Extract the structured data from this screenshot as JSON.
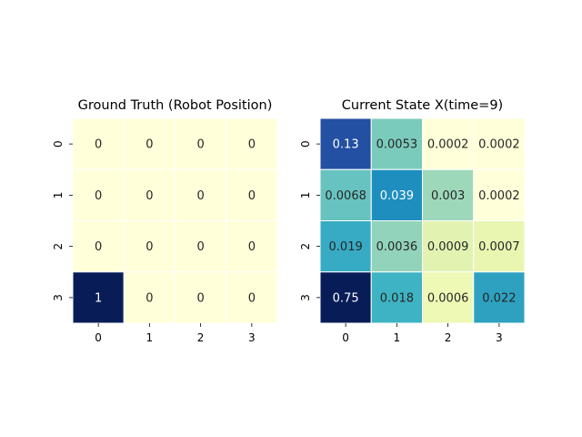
{
  "chart_data": [
    {
      "type": "heatmap",
      "title": "Ground Truth (Robot Position)",
      "xlabel": "",
      "ylabel": "",
      "x_tick_labels": [
        "0",
        "1",
        "2",
        "3"
      ],
      "y_tick_labels": [
        "0",
        "1",
        "2",
        "3"
      ],
      "values": [
        [
          0,
          0,
          0,
          0
        ],
        [
          0,
          0,
          0,
          0
        ],
        [
          0,
          0,
          0,
          0
        ],
        [
          1,
          0,
          0,
          0
        ]
      ],
      "cell_labels": [
        [
          "0",
          "0",
          "0",
          "0"
        ],
        [
          "0",
          "0",
          "0",
          "0"
        ],
        [
          "0",
          "0",
          "0",
          "0"
        ],
        [
          "1",
          "0",
          "0",
          "0"
        ]
      ],
      "colormap": "YlGnBu",
      "colorbar": false,
      "grid_lines_color": "#ffffff"
    },
    {
      "type": "heatmap",
      "title": "Current State X(time=9)",
      "xlabel": "",
      "ylabel": "",
      "x_tick_labels": [
        "0",
        "1",
        "2",
        "3"
      ],
      "y_tick_labels": [
        "0",
        "1",
        "2",
        "3"
      ],
      "values": [
        [
          0.13,
          0.0053,
          0.0002,
          0.0002
        ],
        [
          0.0068,
          0.039,
          0.003,
          0.0002
        ],
        [
          0.019,
          0.0036,
          0.0009,
          0.0007
        ],
        [
          0.75,
          0.018,
          0.0006,
          0.022
        ]
      ],
      "cell_labels": [
        [
          "0.13",
          "0.0053",
          "0.0002",
          "0.0002"
        ],
        [
          "0.0068",
          "0.039",
          "0.003",
          "0.0002"
        ],
        [
          "0.019",
          "0.0036",
          "0.0009",
          "0.0007"
        ],
        [
          "0.75",
          "0.018",
          "0.0006",
          "0.022"
        ]
      ],
      "colormap": "YlGnBu",
      "colorbar": false,
      "grid_lines_color": "#ffffff"
    }
  ],
  "colors": {
    "cell_colors_chart_1": [
      [
        "#ffffd9",
        "#ffffd9",
        "#ffffd9",
        "#ffffd9"
      ],
      [
        "#ffffd9",
        "#ffffd9",
        "#ffffd9",
        "#ffffd9"
      ],
      [
        "#ffffd9",
        "#ffffd9",
        "#ffffd9",
        "#ffffd9"
      ],
      [
        "#081d58",
        "#ffffd9",
        "#ffffd9",
        "#ffffd9"
      ]
    ],
    "cell_colors_chart_2": [
      [
        "#2350a3",
        "#7bcbbd",
        "#ffffd9",
        "#ffffd9"
      ],
      [
        "#67c3c0",
        "#1e8ebf",
        "#9ed8bb",
        "#ffffd9"
      ],
      [
        "#37abc3",
        "#91d3bb",
        "#e2f3b1",
        "#e8f6b1"
      ],
      [
        "#081d58",
        "#3eb3c3",
        "#eef9b5",
        "#2ea1c1"
      ]
    ],
    "dark_text": "#262626",
    "light_text": "#ffffff"
  }
}
